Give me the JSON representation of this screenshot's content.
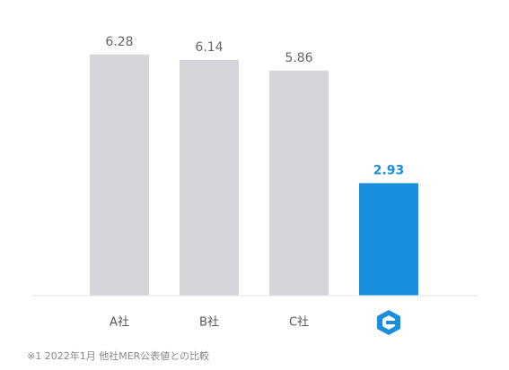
{
  "chart_data": {
    "type": "bar",
    "categories": [
      "A社",
      "B社",
      "C社",
      null
    ],
    "values": [
      6.28,
      6.14,
      5.86,
      2.93
    ],
    "colors": [
      "#d4d6db",
      "#d4d6db",
      "#d4d6db",
      "#1a8ede"
    ],
    "value_label_colors": [
      "#666666",
      "#666666",
      "#666666",
      "#1a8ede"
    ],
    "ylim": [
      0,
      7
    ],
    "footnote": "※1 2022年1月 他社MER公表値との比較"
  }
}
